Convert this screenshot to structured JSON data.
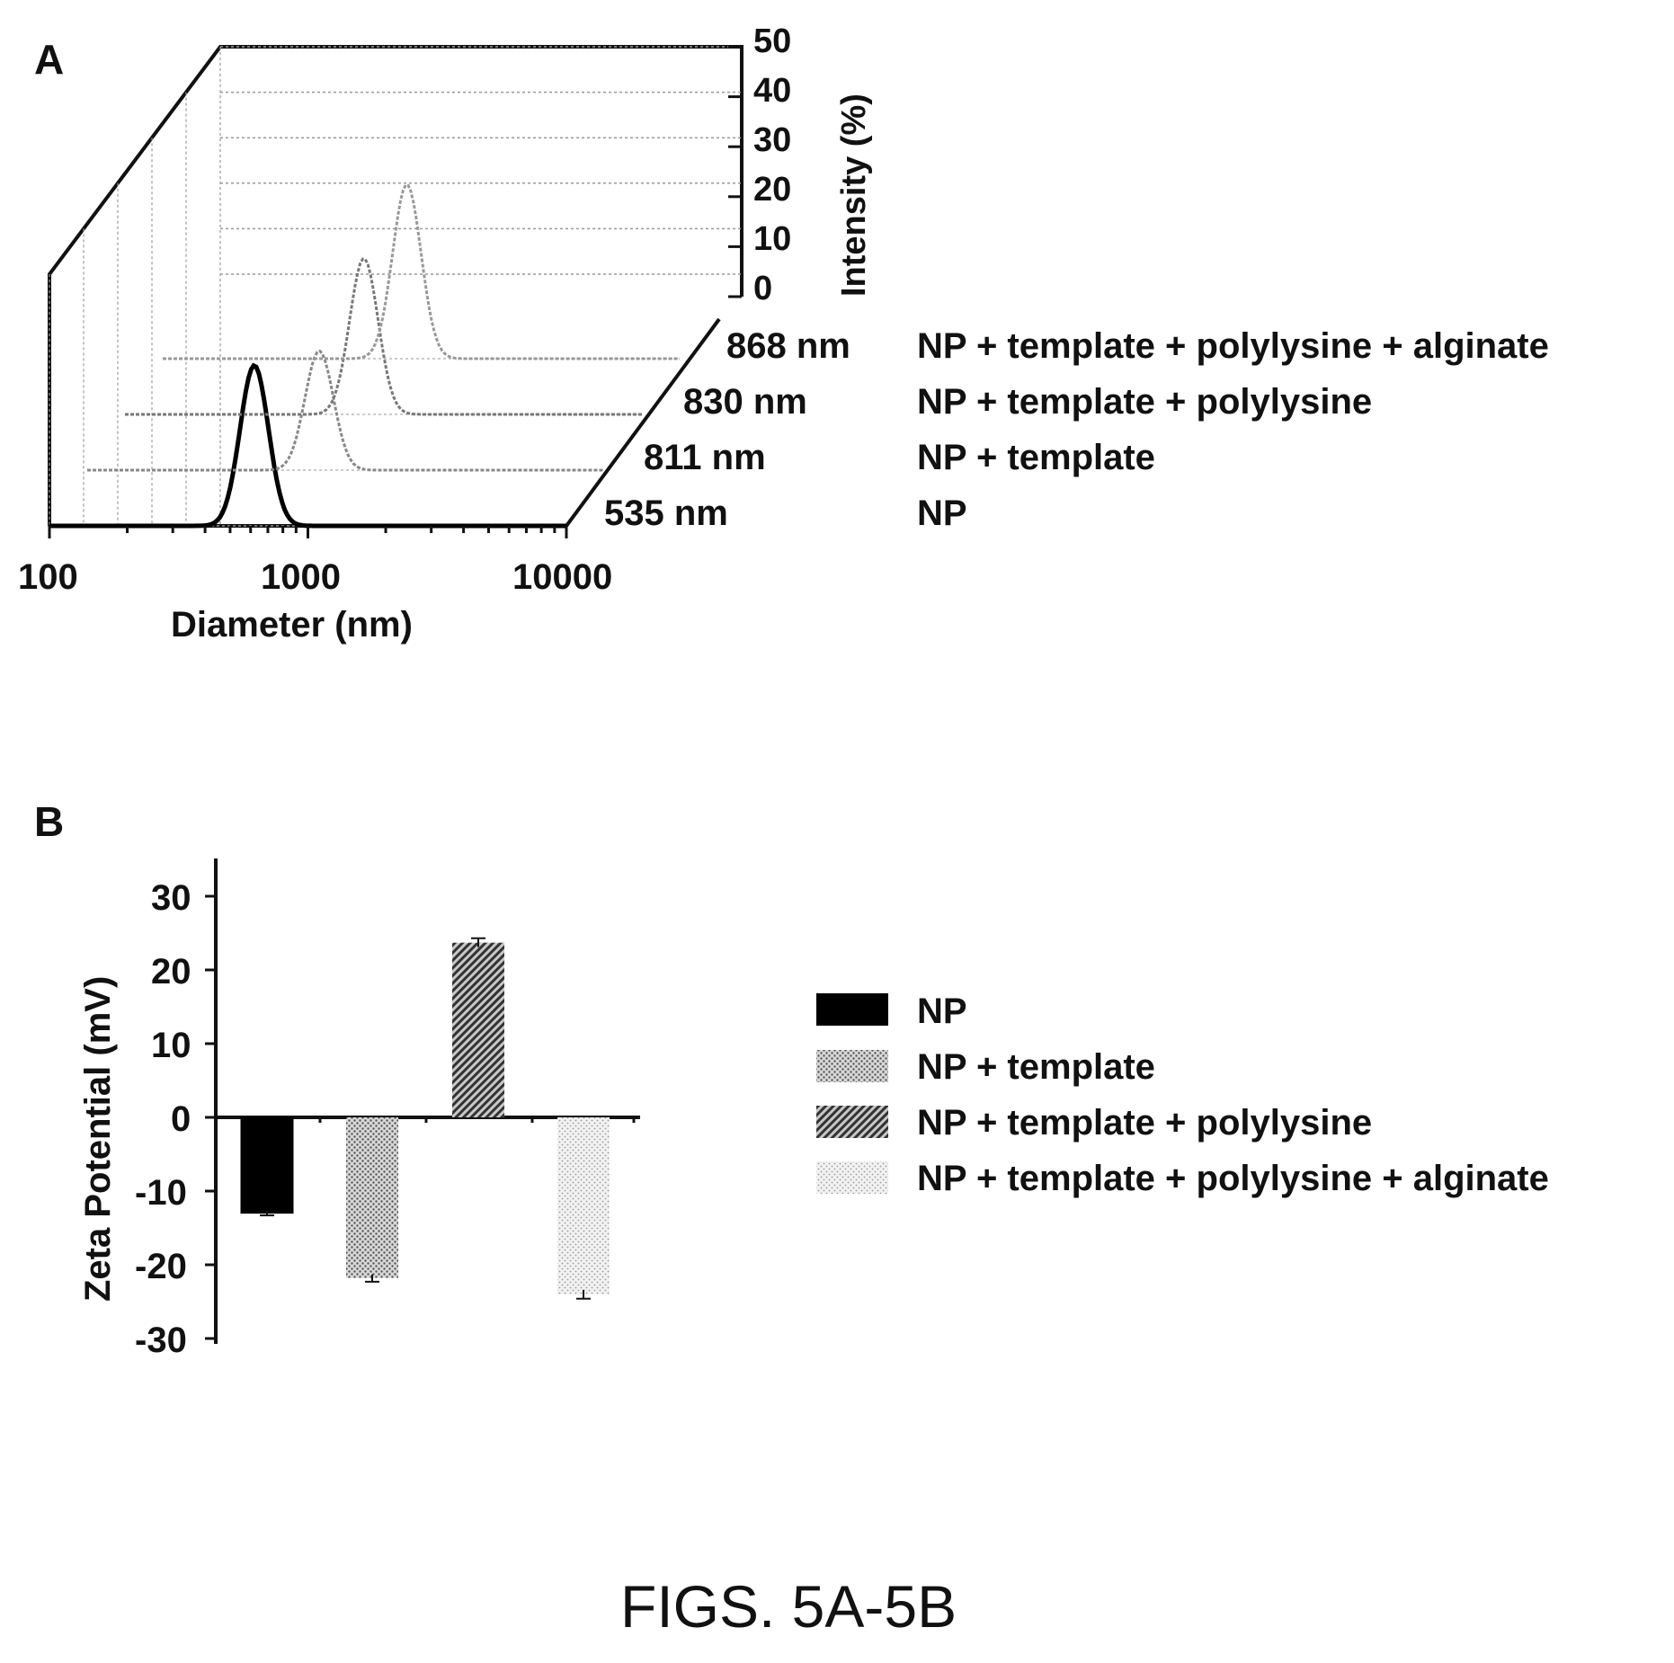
{
  "figure_caption": "FIGS. 5A-5B",
  "chart_data": [
    {
      "panel": "A",
      "type": "line",
      "xlabel": "Diameter (nm)",
      "ylabel": "Intensity (%)",
      "xscale": "log",
      "xlim": [
        100,
        10000
      ],
      "ylim": [
        0,
        50
      ],
      "xticks": [
        "100",
        "1000",
        "10000"
      ],
      "yticks": [
        "0",
        "10",
        "20",
        "30",
        "40",
        "50"
      ],
      "series": [
        {
          "name": "NP",
          "size_label": "535 nm",
          "peak_x": 620,
          "peak_y": 35,
          "color": "#000000"
        },
        {
          "name": "NP + template",
          "size_label": "811 nm",
          "peak_x": 790,
          "peak_y": 26,
          "color": "#888888"
        },
        {
          "name": "NP + template + polylysine",
          "size_label": "830 nm",
          "peak_x": 840,
          "peak_y": 34,
          "color": "#777777"
        },
        {
          "name": "NP + template + polylysine + alginate",
          "size_label": "868 nm",
          "peak_x": 880,
          "peak_y": 38,
          "color": "#999999"
        }
      ]
    },
    {
      "panel": "B",
      "type": "bar",
      "ylabel": "Zeta Potential (mV)",
      "ylim": [
        -30,
        35
      ],
      "yticks": [
        "30",
        "20",
        "10",
        "0",
        "-10",
        "-20",
        "-30"
      ],
      "categories": [
        "NP",
        "NP + template",
        "NP + template + polylysine",
        "NP + template + polylysine + alginate"
      ],
      "values": [
        -13,
        -21.8,
        23.7,
        -24
      ],
      "errors": [
        0.3,
        0.5,
        0.6,
        0.6
      ],
      "legend_position": "right",
      "legend": [
        {
          "name": "NP",
          "pattern": "solid-black"
        },
        {
          "name": "NP + template",
          "pattern": "fine-dots"
        },
        {
          "name": "NP + template + polylysine",
          "pattern": "diagonal-hatch"
        },
        {
          "name": "NP + template + polylysine + alginate",
          "pattern": "light-dots"
        }
      ]
    }
  ]
}
